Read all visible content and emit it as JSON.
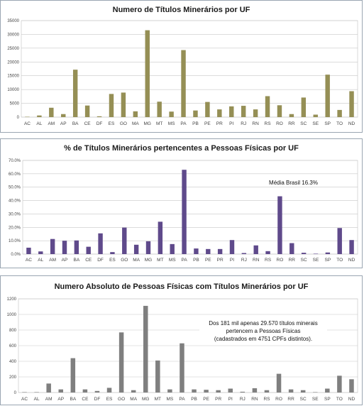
{
  "charts": [
    {
      "title": "Numero de Títulos Minerários por UF",
      "color": "#958f55",
      "annotation": ""
    },
    {
      "title": "% de Títulos Minerários pertencentes a Pessoas Físicas por UF",
      "color": "#5f4a8b",
      "annotation": "Média Brasil 16.3%"
    },
    {
      "title": "Numero Absoluto de Pessoas Físicas com Títulos Minerários por UF",
      "color": "#7f7f7f",
      "annotation_lines": [
        "Dos 181 mil apenas 29.570 títulos minerais",
        "pertencem a Pessoas Físicas",
        "(cadastrados em 4751 CPFs distintos)."
      ]
    }
  ],
  "chart_data": [
    {
      "type": "bar",
      "title": "Numero de Títulos Minerários por UF",
      "categories": [
        "AC",
        "AL",
        "AM",
        "AP",
        "BA",
        "CE",
        "DF",
        "ES",
        "GO",
        "MA",
        "MG",
        "MT",
        "MS",
        "PA",
        "PB",
        "PE",
        "PR",
        "PI",
        "RJ",
        "RN",
        "RS",
        "RO",
        "RR",
        "SC",
        "SE",
        "SP",
        "TO",
        "ND"
      ],
      "values": [
        100,
        600,
        3400,
        1100,
        17200,
        4200,
        300,
        8400,
        8900,
        2100,
        31500,
        5600,
        2000,
        24300,
        2400,
        5500,
        2800,
        3900,
        4100,
        2800,
        7600,
        4300,
        1100,
        7100,
        900,
        15400,
        2600,
        9400
      ],
      "ylim": [
        0,
        35000
      ],
      "yticks": [
        "0",
        "5000",
        "10000",
        "15000",
        "20000",
        "25000",
        "30000",
        "35000"
      ],
      "grid": true
    },
    {
      "type": "bar",
      "title": "% de Títulos Minerários pertencentes a Pessoas Físicas por UF",
      "categories": [
        "AC",
        "AL",
        "AM",
        "AP",
        "BA",
        "CE",
        "DF",
        "ES",
        "GO",
        "MA",
        "MG",
        "MT",
        "MS",
        "PA",
        "PB",
        "PE",
        "PR",
        "PI",
        "RJ",
        "RN",
        "RS",
        "RO",
        "RR",
        "SC",
        "SE",
        "SP",
        "TO",
        "ND"
      ],
      "values": [
        4.8,
        2.0,
        11.3,
        10.0,
        10.2,
        5.5,
        15.5,
        1.5,
        19.8,
        7.0,
        9.6,
        24.2,
        7.5,
        63.0,
        4.2,
        3.8,
        3.8,
        10.5,
        0.8,
        6.5,
        2.2,
        43.2,
        8.2,
        1.0,
        0.3,
        1.2,
        19.5,
        10.5
      ],
      "ylim": [
        0,
        70
      ],
      "yticks": [
        "0.0%",
        "10.0%",
        "20.0%",
        "30.0%",
        "40.0%",
        "50.0%",
        "60.0%",
        "70.0%"
      ],
      "grid": true
    },
    {
      "type": "bar",
      "title": "Numero Absoluto de Pessoas Físicas com Títulos Minerários por UF",
      "categories": [
        "AC",
        "AL",
        "AM",
        "AP",
        "BA",
        "CE",
        "DF",
        "ES",
        "GO",
        "MA",
        "MG",
        "MT",
        "MS",
        "PA",
        "PB",
        "PE",
        "PR",
        "PI",
        "RJ",
        "RN",
        "RS",
        "RO",
        "RR",
        "SC",
        "SE",
        "SP",
        "TO",
        "ND"
      ],
      "values": [
        5,
        5,
        115,
        40,
        440,
        40,
        20,
        60,
        770,
        30,
        1110,
        410,
        40,
        630,
        40,
        35,
        30,
        50,
        10,
        55,
        30,
        240,
        40,
        30,
        5,
        50,
        215,
        170
      ],
      "ylim": [
        0,
        1200
      ],
      "yticks": [
        "0",
        "200",
        "400",
        "600",
        "800",
        "1000",
        "1200"
      ],
      "grid": true
    }
  ]
}
